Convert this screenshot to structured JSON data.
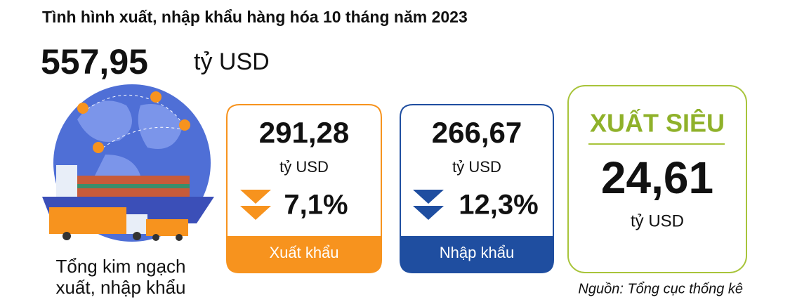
{
  "header": {
    "title": "Tình hình xuất, nhập khẩu hàng hóa 10 tháng năm 2023"
  },
  "total": {
    "value": "557,95",
    "unit": "tỷ USD",
    "caption": [
      "Tổng kim ngạch",
      "xuất, nhập khẩu"
    ]
  },
  "cards": [
    {
      "value": "291,28",
      "unit": "tỷ USD",
      "change": "7,1%",
      "label": "Xuất khẩu"
    },
    {
      "value": "266,67",
      "unit": "tỷ USD",
      "change": "12,3%",
      "label": "Nhập khẩu"
    }
  ],
  "surplus": {
    "label": "XUẤT SIÊU",
    "value": "24,61",
    "unit": "tỷ USD"
  },
  "source": "Nguồn: Tổng cục thống kê"
}
